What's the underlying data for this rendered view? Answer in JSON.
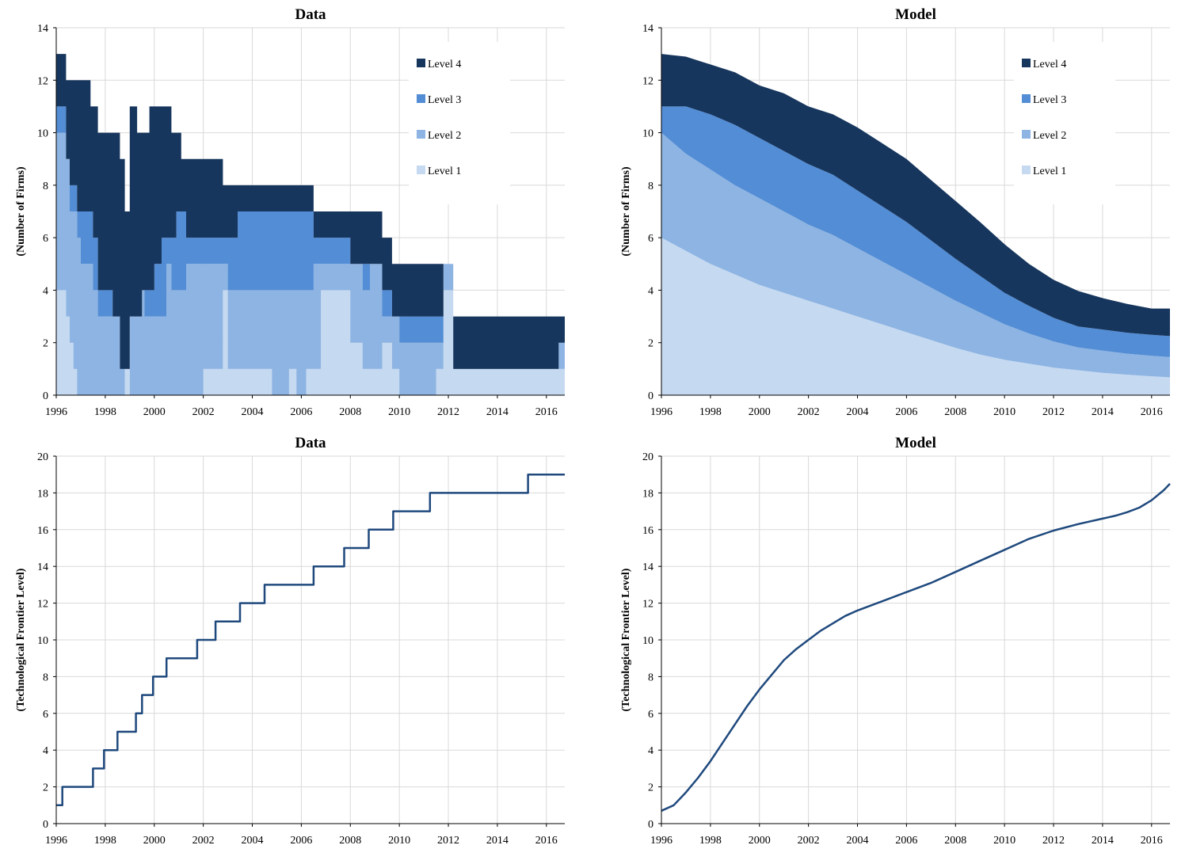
{
  "colors": {
    "level4": "#17365d",
    "level3": "#538dd5",
    "level2": "#8db4e2",
    "level1": "#c5d9f1",
    "line": "#1f497d",
    "grid": "#d9d9d9"
  },
  "chart_data": [
    {
      "type": "area",
      "stacked": true,
      "step": true,
      "title": "Data",
      "xlabel": "",
      "ylabel": "(Number of Firms)",
      "xlim": [
        1996,
        2016.75
      ],
      "ylim": [
        0,
        14
      ],
      "xticks": [
        "1996",
        "1998",
        "2000",
        "2002",
        "2004",
        "2006",
        "2008",
        "2010",
        "2012",
        "2014",
        "2016"
      ],
      "yticks": [
        "0",
        "2",
        "4",
        "6",
        "8",
        "10",
        "12",
        "14"
      ],
      "grid": true,
      "legend": "top-right",
      "legend_entries": [
        "Level 4",
        "Level 3",
        "Level 2",
        "Level 1"
      ],
      "x": [
        1996.0,
        1996.15,
        1996.4,
        1996.55,
        1996.7,
        1996.85,
        1997.0,
        1997.4,
        1997.5,
        1997.7,
        1997.9,
        1998.3,
        1998.6,
        1998.8,
        1999.0,
        1999.3,
        1999.5,
        1999.6,
        1999.8,
        2000.0,
        2000.3,
        2000.5,
        2000.7,
        2000.9,
        2001.1,
        2001.3,
        2001.5,
        2002.0,
        2002.4,
        2002.8,
        2003.0,
        2003.4,
        2003.6,
        2003.8,
        2004.2,
        2004.8,
        2005.0,
        2005.5,
        2005.8,
        2006.2,
        2006.5,
        2006.8,
        2007.5,
        2008.0,
        2008.5,
        2008.8,
        2009.0,
        2009.3,
        2009.7,
        2010.0,
        2010.5,
        2011.0,
        2011.5,
        2011.8,
        2012.2,
        2012.5,
        2013.0,
        2013.5,
        2014.0,
        2014.5,
        2015.0,
        2015.5,
        2016.0,
        2016.5
      ],
      "series": [
        {
          "name": "Level 1",
          "values": [
            4,
            4,
            3,
            2,
            1,
            0,
            0,
            0,
            0,
            0,
            0,
            0,
            0,
            1,
            0,
            0,
            0,
            0,
            0,
            0,
            0,
            0,
            0,
            0,
            0,
            0,
            0,
            1,
            1,
            4,
            1,
            1,
            1,
            1,
            1,
            0,
            0,
            1,
            0,
            1,
            1,
            4,
            4,
            2,
            1,
            1,
            1,
            2,
            1,
            0,
            0,
            0,
            1,
            4,
            1,
            1,
            1,
            1,
            1,
            1,
            1,
            1,
            1,
            1
          ]
        },
        {
          "name": "Level 2",
          "values": [
            6,
            6,
            6,
            5,
            6,
            6,
            5,
            5,
            4,
            3,
            3,
            3,
            1,
            0,
            3,
            3,
            4,
            3,
            3,
            3,
            3,
            5,
            4,
            4,
            4,
            5,
            5,
            4,
            4,
            1,
            3,
            3,
            3,
            3,
            3,
            4,
            4,
            3,
            4,
            3,
            4,
            1,
            1,
            3,
            3,
            4,
            4,
            1,
            2,
            2,
            2,
            2,
            1,
            1,
            0,
            0,
            0,
            0,
            0,
            0,
            0,
            0,
            0,
            1
          ]
        },
        {
          "name": "Level 3",
          "values": [
            1,
            1,
            0,
            1,
            1,
            1,
            2,
            2,
            2,
            1,
            1,
            0,
            0,
            0,
            0,
            0,
            0,
            1,
            1,
            2,
            3,
            1,
            2,
            3,
            3,
            1,
            1,
            1,
            1,
            1,
            2,
            3,
            3,
            3,
            3,
            3,
            3,
            3,
            3,
            3,
            1,
            1,
            1,
            0,
            1,
            0,
            0,
            1,
            0,
            1,
            1,
            1,
            1,
            0,
            0,
            0,
            0,
            0,
            0,
            0,
            0,
            0,
            0,
            0
          ]
        },
        {
          "name": "Level 4",
          "values": [
            2,
            2,
            3,
            4,
            4,
            5,
            5,
            4,
            5,
            6,
            6,
            7,
            8,
            6,
            8,
            7,
            6,
            6,
            7,
            6,
            5,
            5,
            4,
            3,
            2,
            3,
            3,
            3,
            3,
            2,
            2,
            1,
            1,
            1,
            1,
            1,
            1,
            1,
            1,
            1,
            1,
            1,
            1,
            2,
            2,
            2,
            2,
            2,
            2,
            2,
            2,
            2,
            2,
            0,
            2,
            2,
            2,
            2,
            2,
            2,
            2,
            2,
            2,
            1
          ]
        }
      ]
    },
    {
      "type": "area",
      "stacked": true,
      "title": "Model",
      "xlabel": "",
      "ylabel": "(Number of Firms)",
      "xlim": [
        1996,
        2016.75
      ],
      "ylim": [
        0,
        14
      ],
      "xticks": [
        "1996",
        "1998",
        "2000",
        "2002",
        "2004",
        "2006",
        "2008",
        "2010",
        "2012",
        "2014",
        "2016"
      ],
      "yticks": [
        "0",
        "2",
        "4",
        "6",
        "8",
        "10",
        "12",
        "14"
      ],
      "grid": true,
      "legend": "top-right",
      "legend_entries": [
        "Level 4",
        "Level 3",
        "Level 2",
        "Level 1"
      ],
      "x": [
        1996,
        1997,
        1998,
        1999,
        2000,
        2001,
        2002,
        2003,
        2004,
        2005,
        2006,
        2007,
        2008,
        2009,
        2010,
        2011,
        2012,
        2013,
        2014,
        2015,
        2016,
        2016.75
      ],
      "series": [
        {
          "name": "Level 1",
          "values": [
            6.0,
            5.5,
            5.0,
            4.6,
            4.2,
            3.9,
            3.6,
            3.3,
            3.0,
            2.7,
            2.4,
            2.1,
            1.8,
            1.55,
            1.35,
            1.2,
            1.05,
            0.95,
            0.85,
            0.78,
            0.72,
            0.68
          ]
        },
        {
          "name": "Level 2",
          "values": [
            4.0,
            3.7,
            3.6,
            3.4,
            3.3,
            3.1,
            2.9,
            2.8,
            2.6,
            2.4,
            2.2,
            2.0,
            1.8,
            1.6,
            1.35,
            1.15,
            1.0,
            0.87,
            0.85,
            0.8,
            0.78,
            0.77
          ]
        },
        {
          "name": "Level 3",
          "values": [
            1.0,
            1.8,
            2.1,
            2.3,
            2.3,
            2.3,
            2.3,
            2.3,
            2.2,
            2.1,
            2.0,
            1.8,
            1.6,
            1.4,
            1.2,
            1.05,
            0.9,
            0.8,
            0.8,
            0.8,
            0.8,
            0.8
          ]
        },
        {
          "name": "Level 4",
          "values": [
            2.0,
            1.9,
            1.9,
            2.0,
            2.0,
            2.2,
            2.2,
            2.3,
            2.4,
            2.4,
            2.4,
            2.3,
            2.2,
            2.05,
            1.85,
            1.6,
            1.45,
            1.35,
            1.2,
            1.1,
            1.0,
            1.05
          ]
        }
      ]
    },
    {
      "type": "line",
      "step": true,
      "title": "Data",
      "xlabel": "",
      "ylabel": "(Technological Frontier Level)",
      "xlim": [
        1996,
        2016.75
      ],
      "ylim": [
        0,
        20
      ],
      "xticks": [
        "1996",
        "1998",
        "2000",
        "2002",
        "2004",
        "2006",
        "2008",
        "2010",
        "2012",
        "2014",
        "2016"
      ],
      "yticks": [
        "0",
        "2",
        "4",
        "6",
        "8",
        "10",
        "12",
        "14",
        "16",
        "18",
        "20"
      ],
      "grid": true,
      "x": [
        1996.0,
        1996.25,
        1997.5,
        1997.95,
        1998.5,
        1999.25,
        1999.5,
        1999.95,
        2000.5,
        2001.75,
        2002.5,
        2003.5,
        2004.5,
        2006.5,
        2007.75,
        2008.75,
        2009.75,
        2011.25,
        2015.25,
        2016.75
      ],
      "series": [
        {
          "name": "",
          "values": [
            1,
            2,
            3,
            4,
            5,
            6,
            7,
            8,
            9,
            10,
            11,
            12,
            13,
            14,
            15,
            16,
            17,
            18,
            19,
            19
          ]
        }
      ]
    },
    {
      "type": "line",
      "title": "Model",
      "xlabel": "",
      "ylabel": "(Technological Frontier Level)",
      "xlim": [
        1996,
        2016.75
      ],
      "ylim": [
        0,
        20
      ],
      "xticks": [
        "1996",
        "1998",
        "2000",
        "2002",
        "2004",
        "2006",
        "2008",
        "2010",
        "2012",
        "2014",
        "2016"
      ],
      "yticks": [
        "0",
        "2",
        "4",
        "6",
        "8",
        "10",
        "12",
        "14",
        "16",
        "18",
        "20"
      ],
      "grid": true,
      "x": [
        1996,
        1996.5,
        1997,
        1997.5,
        1998,
        1998.5,
        1999,
        1999.5,
        2000,
        2000.5,
        2001,
        2001.5,
        2002,
        2002.5,
        2003,
        2003.5,
        2004,
        2005,
        2006,
        2007,
        2008,
        2009,
        2010,
        2011,
        2012,
        2013,
        2014,
        2014.5,
        2015,
        2015.5,
        2016,
        2016.5,
        2016.75
      ],
      "series": [
        {
          "name": "",
          "values": [
            0.7,
            1.0,
            1.7,
            2.5,
            3.4,
            4.4,
            5.4,
            6.4,
            7.3,
            8.1,
            8.9,
            9.5,
            10.0,
            10.5,
            10.9,
            11.3,
            11.6,
            12.1,
            12.6,
            13.1,
            13.7,
            14.3,
            14.9,
            15.5,
            15.95,
            16.3,
            16.6,
            16.75,
            16.95,
            17.2,
            17.6,
            18.15,
            18.5
          ]
        }
      ]
    }
  ]
}
